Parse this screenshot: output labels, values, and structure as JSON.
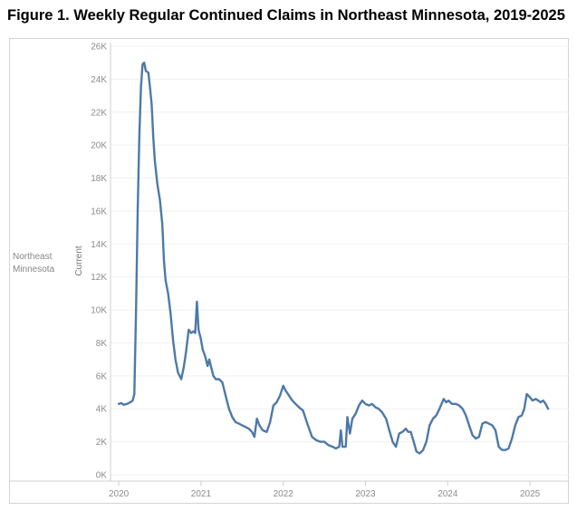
{
  "chart_data": {
    "type": "line",
    "title": "Figure 1. Weekly Regular Continued Claims in Northeast Minnesota, 2019-2025",
    "row_label_line1": "Northeast",
    "row_label_line2": "Minnesota",
    "ylabel": "Current",
    "xlabel": "",
    "ylim": [
      0,
      26000
    ],
    "xlim": [
      2019.9,
      2025.45
    ],
    "y_ticks": [
      0,
      2000,
      4000,
      6000,
      8000,
      10000,
      12000,
      14000,
      16000,
      18000,
      20000,
      22000,
      24000,
      26000
    ],
    "y_tick_labels": [
      "0K",
      "2K",
      "4K",
      "6K",
      "8K",
      "10K",
      "12K",
      "14K",
      "16K",
      "18K",
      "20K",
      "22K",
      "24K",
      "26K"
    ],
    "x_ticks": [
      2020,
      2021,
      2022,
      2023,
      2024,
      2025
    ],
    "x_tick_labels": [
      "2020",
      "2021",
      "2022",
      "2023",
      "2024",
      "2025"
    ],
    "line_color": "#4e79a7",
    "grid": true,
    "series": [
      {
        "name": "Northeast Minnesota",
        "points": [
          [
            2020.0,
            4300
          ],
          [
            2020.03,
            4350
          ],
          [
            2020.06,
            4250
          ],
          [
            2020.1,
            4300
          ],
          [
            2020.14,
            4400
          ],
          [
            2020.17,
            4500
          ],
          [
            2020.19,
            4900
          ],
          [
            2020.21,
            10000
          ],
          [
            2020.23,
            16000
          ],
          [
            2020.25,
            20500
          ],
          [
            2020.27,
            23500
          ],
          [
            2020.29,
            24900
          ],
          [
            2020.31,
            25000
          ],
          [
            2020.33,
            24500
          ],
          [
            2020.36,
            24400
          ],
          [
            2020.38,
            23500
          ],
          [
            2020.4,
            22500
          ],
          [
            2020.42,
            20500
          ],
          [
            2020.44,
            19000
          ],
          [
            2020.47,
            17600
          ],
          [
            2020.5,
            16700
          ],
          [
            2020.53,
            15200
          ],
          [
            2020.55,
            13000
          ],
          [
            2020.57,
            11800
          ],
          [
            2020.6,
            11000
          ],
          [
            2020.63,
            9800
          ],
          [
            2020.66,
            8200
          ],
          [
            2020.69,
            7000
          ],
          [
            2020.72,
            6200
          ],
          [
            2020.76,
            5800
          ],
          [
            2020.79,
            6500
          ],
          [
            2020.82,
            7500
          ],
          [
            2020.85,
            8800
          ],
          [
            2020.88,
            8600
          ],
          [
            2020.91,
            8700
          ],
          [
            2020.93,
            8600
          ],
          [
            2020.95,
            10500
          ],
          [
            2020.97,
            8800
          ],
          [
            2021.0,
            8200
          ],
          [
            2021.02,
            7600
          ],
          [
            2021.05,
            7200
          ],
          [
            2021.08,
            6600
          ],
          [
            2021.1,
            7000
          ],
          [
            2021.13,
            6400
          ],
          [
            2021.15,
            6000
          ],
          [
            2021.18,
            5800
          ],
          [
            2021.22,
            5800
          ],
          [
            2021.26,
            5600
          ],
          [
            2021.3,
            4800
          ],
          [
            2021.34,
            4000
          ],
          [
            2021.38,
            3500
          ],
          [
            2021.42,
            3200
          ],
          [
            2021.46,
            3100
          ],
          [
            2021.5,
            3000
          ],
          [
            2021.54,
            2900
          ],
          [
            2021.58,
            2800
          ],
          [
            2021.62,
            2600
          ],
          [
            2021.65,
            2300
          ],
          [
            2021.68,
            3400
          ],
          [
            2021.71,
            3000
          ],
          [
            2021.75,
            2700
          ],
          [
            2021.8,
            2600
          ],
          [
            2021.84,
            3200
          ],
          [
            2021.88,
            4200
          ],
          [
            2021.92,
            4400
          ],
          [
            2021.96,
            4800
          ],
          [
            2022.0,
            5400
          ],
          [
            2022.03,
            5100
          ],
          [
            2022.07,
            4800
          ],
          [
            2022.11,
            4500
          ],
          [
            2022.15,
            4300
          ],
          [
            2022.19,
            4100
          ],
          [
            2022.24,
            3900
          ],
          [
            2022.3,
            3000
          ],
          [
            2022.35,
            2300
          ],
          [
            2022.4,
            2100
          ],
          [
            2022.45,
            2000
          ],
          [
            2022.5,
            2000
          ],
          [
            2022.55,
            1800
          ],
          [
            2022.6,
            1700
          ],
          [
            2022.64,
            1600
          ],
          [
            2022.68,
            1700
          ],
          [
            2022.7,
            2700
          ],
          [
            2022.72,
            1700
          ],
          [
            2022.76,
            1700
          ],
          [
            2022.78,
            3500
          ],
          [
            2022.81,
            2500
          ],
          [
            2022.84,
            3400
          ],
          [
            2022.88,
            3700
          ],
          [
            2022.92,
            4200
          ],
          [
            2022.96,
            4500
          ],
          [
            2023.0,
            4300
          ],
          [
            2023.04,
            4200
          ],
          [
            2023.08,
            4300
          ],
          [
            2023.12,
            4100
          ],
          [
            2023.16,
            4000
          ],
          [
            2023.2,
            3800
          ],
          [
            2023.25,
            3400
          ],
          [
            2023.29,
            2700
          ],
          [
            2023.33,
            2000
          ],
          [
            2023.37,
            1700
          ],
          [
            2023.41,
            2500
          ],
          [
            2023.45,
            2600
          ],
          [
            2023.49,
            2800
          ],
          [
            2023.52,
            2600
          ],
          [
            2023.55,
            2600
          ],
          [
            2023.58,
            2100
          ],
          [
            2023.62,
            1400
          ],
          [
            2023.66,
            1300
          ],
          [
            2023.7,
            1500
          ],
          [
            2023.74,
            2000
          ],
          [
            2023.78,
            3000
          ],
          [
            2023.82,
            3400
          ],
          [
            2023.86,
            3600
          ],
          [
            2023.9,
            4000
          ],
          [
            2023.95,
            4600
          ],
          [
            2023.98,
            4400
          ],
          [
            2024.01,
            4500
          ],
          [
            2024.05,
            4300
          ],
          [
            2024.1,
            4300
          ],
          [
            2024.14,
            4200
          ],
          [
            2024.18,
            4000
          ],
          [
            2024.22,
            3600
          ],
          [
            2024.26,
            3000
          ],
          [
            2024.3,
            2400
          ],
          [
            2024.34,
            2200
          ],
          [
            2024.38,
            2300
          ],
          [
            2024.42,
            3100
          ],
          [
            2024.46,
            3200
          ],
          [
            2024.5,
            3100
          ],
          [
            2024.54,
            3000
          ],
          [
            2024.58,
            2700
          ],
          [
            2024.62,
            1700
          ],
          [
            2024.66,
            1500
          ],
          [
            2024.7,
            1500
          ],
          [
            2024.74,
            1600
          ],
          [
            2024.78,
            2200
          ],
          [
            2024.82,
            3000
          ],
          [
            2024.86,
            3500
          ],
          [
            2024.9,
            3600
          ],
          [
            2024.93,
            4000
          ],
          [
            2024.96,
            4900
          ],
          [
            2025.0,
            4700
          ],
          [
            2025.03,
            4500
          ],
          [
            2025.07,
            4600
          ],
          [
            2025.1,
            4500
          ],
          [
            2025.13,
            4400
          ],
          [
            2025.16,
            4500
          ],
          [
            2025.19,
            4300
          ],
          [
            2025.22,
            4000
          ]
        ]
      }
    ]
  }
}
